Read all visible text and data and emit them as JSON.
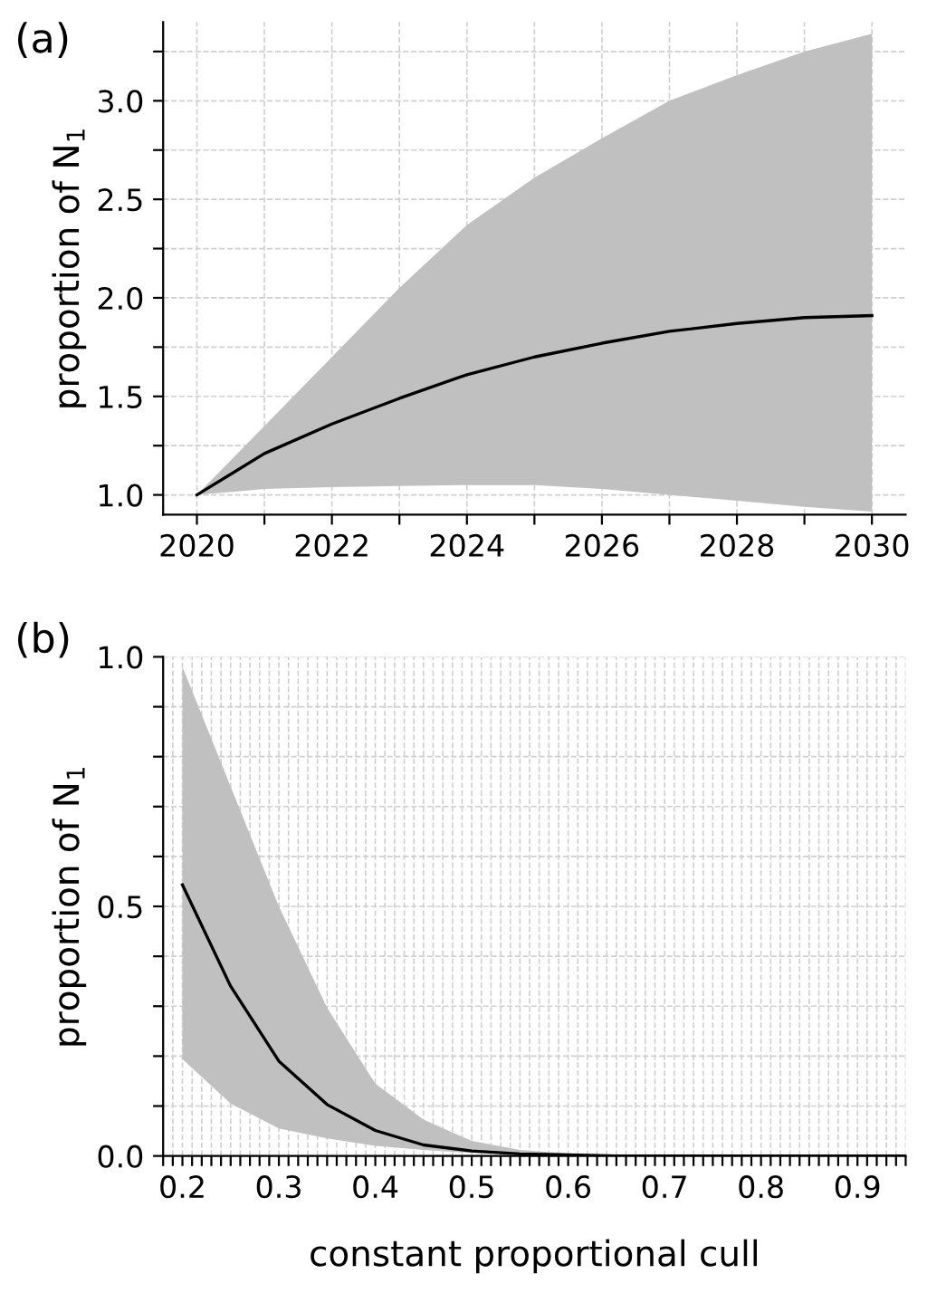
{
  "chart_data": [
    {
      "type": "line",
      "annotations": [
        "(a)"
      ],
      "ylabel": "proportion of N$_{1}$",
      "grid": true,
      "marker": "none",
      "line_style": "solid",
      "x": [
        2020,
        2021,
        2022,
        2023,
        2024,
        2025,
        2026,
        2027,
        2028,
        2029,
        2030
      ],
      "series": [
        {
          "color": "#000000",
          "values": [
            1.0,
            1.21,
            1.36,
            1.49,
            1.61,
            1.7,
            1.77,
            1.83,
            1.87,
            1.9,
            1.91
          ],
          "lower": [
            1.0,
            1.03,
            1.04,
            1.045,
            1.05,
            1.05,
            1.03,
            1.0,
            0.97,
            0.94,
            0.915
          ],
          "upper": [
            1.0,
            1.35,
            1.7,
            2.05,
            2.37,
            2.61,
            2.81,
            3.0,
            3.13,
            3.25,
            3.34
          ]
        }
      ],
      "xlim": [
        2019.5,
        2030.5
      ],
      "ylim": [
        0.9,
        3.4
      ],
      "xticks": [
        2020,
        {
          "value": 2021,
          "label": null
        },
        2022,
        {
          "value": 2023,
          "label": null
        },
        2024,
        {
          "value": 2025,
          "label": null
        },
        2026,
        {
          "value": 2027,
          "label": null
        },
        2028,
        {
          "value": 2029,
          "label": null
        },
        2030
      ],
      "yticks": [
        {
          "value": 1.0,
          "label": "1.0"
        },
        {
          "value": 1.25,
          "label": null
        },
        {
          "value": 1.5,
          "label": "1.5"
        },
        {
          "value": 1.75,
          "label": null
        },
        {
          "value": 2.0,
          "label": "2.0"
        },
        {
          "value": 2.25,
          "label": null
        },
        {
          "value": 2.5,
          "label": "2.5"
        },
        {
          "value": 2.75,
          "label": null
        },
        {
          "value": 3.0,
          "label": "3.0"
        },
        {
          "value": 3.25,
          "label": null
        }
      ]
    },
    {
      "type": "line",
      "annotations": [
        "(b)"
      ],
      "ylabel": "proportion of N$_{1}$",
      "xlabel": "constant proportional cull",
      "grid": true,
      "marker": "none",
      "line_style": "solid",
      "x": [
        0.2,
        0.25,
        0.3,
        0.35,
        0.4,
        0.45,
        0.5,
        0.55,
        0.6,
        0.65,
        0.7,
        0.75,
        0.8,
        0.85,
        0.9,
        0.95
      ],
      "series": [
        {
          "color": "#000000",
          "values": [
            0.543,
            0.34,
            0.19,
            0.103,
            0.051,
            0.022,
            0.01,
            0.004,
            0.002,
            0,
            0,
            0,
            0,
            0,
            0,
            0
          ],
          "lower": [
            0.194,
            0.105,
            0.055,
            0.035,
            0.02,
            0.012,
            0.006,
            0.003,
            0.001,
            0,
            0,
            0,
            0,
            0,
            0,
            0
          ],
          "upper": [
            0.98,
            0.74,
            0.5,
            0.297,
            0.145,
            0.073,
            0.03,
            0.012,
            0.005,
            0.002,
            0,
            0,
            0,
            0,
            0,
            0
          ]
        }
      ],
      "xlim": [
        0.18,
        0.95
      ],
      "ylim": [
        0.0,
        1.0
      ],
      "xticks": [
        {
          "value": 0.18,
          "label": null
        },
        {
          "value": 0.19,
          "label": null
        },
        0.2,
        {
          "value": 0.21,
          "label": null
        },
        {
          "value": 0.22,
          "label": null
        },
        {
          "value": 0.23,
          "label": null
        },
        {
          "value": 0.24,
          "label": null
        },
        {
          "value": 0.25,
          "label": null
        },
        {
          "value": 0.26,
          "label": null
        },
        {
          "value": 0.27,
          "label": null
        },
        {
          "value": 0.28,
          "label": null
        },
        {
          "value": 0.29,
          "label": null
        },
        0.3,
        {
          "value": 0.31,
          "label": null
        },
        {
          "value": 0.32,
          "label": null
        },
        {
          "value": 0.33,
          "label": null
        },
        {
          "value": 0.34,
          "label": null
        },
        {
          "value": 0.35,
          "label": null
        },
        {
          "value": 0.36,
          "label": null
        },
        {
          "value": 0.37,
          "label": null
        },
        {
          "value": 0.38,
          "label": null
        },
        {
          "value": 0.39,
          "label": null
        },
        0.4,
        {
          "value": 0.41,
          "label": null
        },
        {
          "value": 0.42,
          "label": null
        },
        {
          "value": 0.43,
          "label": null
        },
        {
          "value": 0.44,
          "label": null
        },
        {
          "value": 0.45,
          "label": null
        },
        {
          "value": 0.46,
          "label": null
        },
        {
          "value": 0.47,
          "label": null
        },
        {
          "value": 0.48,
          "label": null
        },
        {
          "value": 0.49,
          "label": null
        },
        0.5,
        {
          "value": 0.51,
          "label": null
        },
        {
          "value": 0.52,
          "label": null
        },
        {
          "value": 0.53,
          "label": null
        },
        {
          "value": 0.54,
          "label": null
        },
        {
          "value": 0.55,
          "label": null
        },
        {
          "value": 0.56,
          "label": null
        },
        {
          "value": 0.57,
          "label": null
        },
        {
          "value": 0.58,
          "label": null
        },
        {
          "value": 0.59,
          "label": null
        },
        0.6,
        {
          "value": 0.61,
          "label": null
        },
        {
          "value": 0.62,
          "label": null
        },
        {
          "value": 0.63,
          "label": null
        },
        {
          "value": 0.64,
          "label": null
        },
        {
          "value": 0.65,
          "label": null
        },
        {
          "value": 0.66,
          "label": null
        },
        {
          "value": 0.67,
          "label": null
        },
        {
          "value": 0.68,
          "label": null
        },
        {
          "value": 0.69,
          "label": null
        },
        0.7,
        {
          "value": 0.71,
          "label": null
        },
        {
          "value": 0.72,
          "label": null
        },
        {
          "value": 0.73,
          "label": null
        },
        {
          "value": 0.74,
          "label": null
        },
        {
          "value": 0.75,
          "label": null
        },
        {
          "value": 0.76,
          "label": null
        },
        {
          "value": 0.77,
          "label": null
        },
        {
          "value": 0.78,
          "label": null
        },
        {
          "value": 0.79,
          "label": null
        },
        0.8,
        {
          "value": 0.81,
          "label": null
        },
        {
          "value": 0.82,
          "label": null
        },
        {
          "value": 0.83,
          "label": null
        },
        {
          "value": 0.84,
          "label": null
        },
        {
          "value": 0.85,
          "label": null
        },
        {
          "value": 0.86,
          "label": null
        },
        {
          "value": 0.87,
          "label": null
        },
        {
          "value": 0.88,
          "label": null
        },
        {
          "value": 0.89,
          "label": null
        },
        0.9,
        {
          "value": 0.91,
          "label": null
        },
        {
          "value": 0.92,
          "label": null
        },
        {
          "value": 0.93,
          "label": null
        },
        {
          "value": 0.94,
          "label": null
        },
        {
          "value": 0.95,
          "label": null
        }
      ],
      "yticks": [
        {
          "value": 0.0,
          "label": "0.0"
        },
        {
          "value": 0.1,
          "label": null
        },
        {
          "value": 0.2,
          "label": null
        },
        {
          "value": 0.3,
          "label": null
        },
        {
          "value": 0.4,
          "label": null
        },
        {
          "value": 0.5,
          "label": "0.5"
        },
        {
          "value": 0.6,
          "label": null
        },
        {
          "value": 0.7,
          "label": null
        },
        {
          "value": 0.8,
          "label": null
        },
        {
          "value": 0.9,
          "label": null
        },
        {
          "value": 1.0,
          "label": "1.0"
        }
      ]
    }
  ]
}
